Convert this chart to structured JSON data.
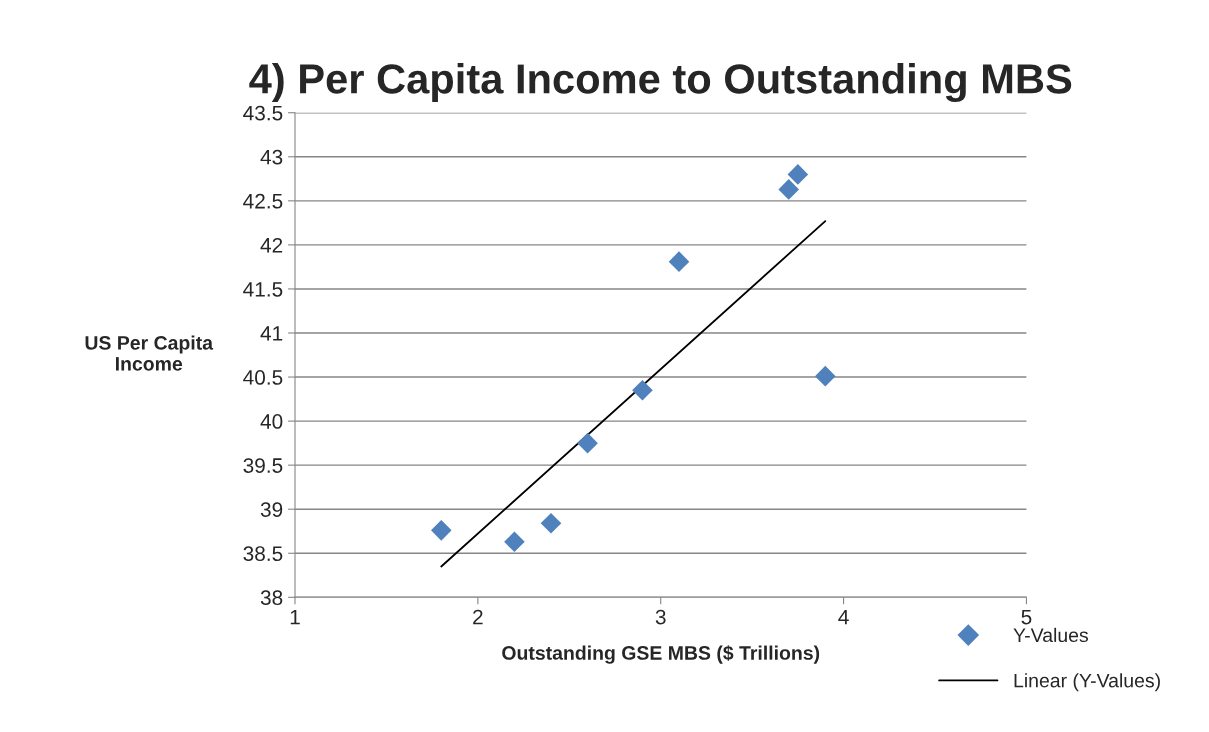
{
  "chart_data": {
    "type": "scatter",
    "title": "4) Per Capita Income to Outstanding MBS",
    "xlabel": "Outstanding GSE MBS ($ Trillions)",
    "ylabel": "US Per Capita Income",
    "series": [
      {
        "name": "Y-Values",
        "color": "#4f81bd",
        "marker": "diamond",
        "x": [
          1.8,
          2.2,
          2.4,
          2.6,
          2.9,
          3.1,
          3.7,
          3.75,
          3.9
        ],
        "values": [
          38.76,
          38.63,
          38.84,
          39.75,
          40.35,
          41.81,
          42.63,
          42.8,
          40.51
        ]
      },
      {
        "name": "Linear (Y-Values)",
        "type": "line",
        "color": "#000000",
        "line_style": "solid",
        "x": [
          1.8,
          3.9
        ],
        "values": [
          38.35,
          42.27
        ]
      }
    ],
    "xlim": [
      1,
      5
    ],
    "xticks": [
      1,
      2,
      3,
      4,
      5
    ],
    "ylim": [
      38,
      43.5
    ],
    "yticks": [
      38,
      38.5,
      39,
      39.5,
      40,
      40.5,
      41,
      41.5,
      42,
      42.5,
      43,
      43.5
    ],
    "grid": "y",
    "legend": "bottom right"
  }
}
